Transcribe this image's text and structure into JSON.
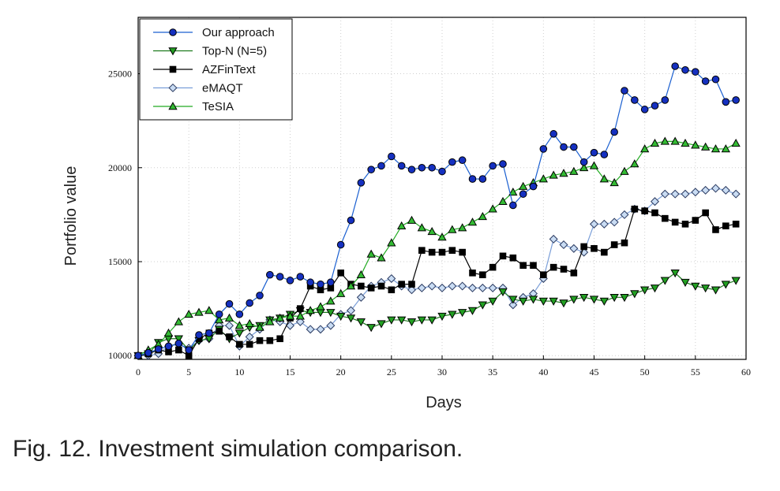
{
  "caption": "Fig. 12. Investment simulation comparison.",
  "chart_data": {
    "type": "line",
    "xlabel": "Days",
    "ylabel": "Portfolio value",
    "xlim": [
      0,
      60
    ],
    "ylim": [
      9800,
      28000
    ],
    "xticks": [
      0,
      5,
      10,
      15,
      20,
      25,
      30,
      35,
      40,
      45,
      50,
      55,
      60
    ],
    "yticks": [
      10000,
      15000,
      20000,
      25000
    ],
    "grid": true,
    "legend_position": "top-left",
    "x": [
      0,
      1,
      2,
      3,
      4,
      5,
      6,
      7,
      8,
      9,
      10,
      11,
      12,
      13,
      14,
      15,
      16,
      17,
      18,
      19,
      20,
      21,
      22,
      23,
      24,
      25,
      26,
      27,
      28,
      29,
      30,
      31,
      32,
      33,
      34,
      35,
      36,
      37,
      38,
      39,
      40,
      41,
      42,
      43,
      44,
      45,
      46,
      47,
      48,
      49,
      50,
      51,
      52,
      53,
      54,
      55,
      56,
      57,
      58,
      59
    ],
    "series": [
      {
        "name": "Our approach",
        "color": "#1a5fd0",
        "fill": "#1530c0",
        "marker": "circle",
        "values": [
          10000,
          10150,
          10350,
          10500,
          10650,
          10300,
          11100,
          11200,
          12200,
          12750,
          12200,
          12800,
          13200,
          14300,
          14200,
          14000,
          14200,
          13900,
          13800,
          13900,
          15900,
          17200,
          19200,
          19900,
          20100,
          20600,
          20100,
          19900,
          20000,
          20000,
          19800,
          20300,
          20400,
          19400,
          19400,
          20100,
          20200,
          18000,
          18600,
          19000,
          21000,
          21800,
          21100,
          21100,
          20300,
          20800,
          20700,
          21900,
          24100,
          23600,
          23100,
          23300,
          23600,
          25400,
          25200,
          25100,
          24600,
          24700,
          23500,
          23600
        ]
      },
      {
        "name": "Top-N (N=5)",
        "color": "#1e7a1e",
        "fill": "#22a022",
        "marker": "triangle-down",
        "values": [
          10000,
          10100,
          10700,
          10900,
          10900,
          10300,
          10800,
          10900,
          11400,
          10900,
          11200,
          11500,
          11600,
          11900,
          12000,
          12200,
          12400,
          12300,
          12300,
          12300,
          12100,
          12000,
          11800,
          11500,
          11700,
          11900,
          11900,
          11800,
          11900,
          11900,
          12100,
          12200,
          12300,
          12400,
          12700,
          12900,
          13400,
          13000,
          12900,
          13000,
          12900,
          12900,
          12800,
          13000,
          13100,
          13000,
          12900,
          13100,
          13100,
          13300,
          13500,
          13600,
          14000,
          14400,
          13900,
          13700,
          13600,
          13500,
          13800,
          14000
        ]
      },
      {
        "name": "AZFinText",
        "color": "#000000",
        "fill": "#000000",
        "marker": "square",
        "values": [
          10000,
          10100,
          10300,
          10200,
          10300,
          10000,
          10900,
          11200,
          11300,
          11000,
          10600,
          10600,
          10800,
          10800,
          10900,
          12000,
          12500,
          13700,
          13500,
          13600,
          14400,
          13800,
          13700,
          13600,
          13700,
          13500,
          13800,
          13800,
          15600,
          15500,
          15500,
          15600,
          15500,
          14400,
          14300,
          14700,
          15300,
          15200,
          14800,
          14800,
          14300,
          14700,
          14600,
          14400,
          15800,
          15700,
          15500,
          15900,
          16000,
          17800,
          17700,
          17600,
          17300,
          17100,
          17000,
          17200,
          17600,
          16700,
          16900,
          17000
        ]
      },
      {
        "name": "eMAQT",
        "color": "#7a9ed8",
        "fill": "#c9dcf3",
        "marker": "diamond",
        "values": [
          10000,
          10000,
          10100,
          10500,
          10600,
          10400,
          10800,
          10900,
          11600,
          11600,
          10500,
          11000,
          11400,
          11900,
          11800,
          11600,
          11800,
          11400,
          11400,
          11600,
          12200,
          12400,
          13100,
          13700,
          13900,
          14100,
          13700,
          13500,
          13600,
          13700,
          13600,
          13700,
          13700,
          13600,
          13600,
          13600,
          13600,
          12700,
          13100,
          13300,
          14100,
          16200,
          15900,
          15700,
          15500,
          17000,
          17000,
          17100,
          17500,
          17800,
          17700,
          18200,
          18600,
          18600,
          18600,
          18700,
          18800,
          18900,
          18800,
          18600
        ]
      },
      {
        "name": "TeSIA",
        "color": "#22aa22",
        "fill": "#33bb33",
        "marker": "triangle-up",
        "values": [
          10000,
          10300,
          10600,
          11200,
          11800,
          12200,
          12300,
          12400,
          11900,
          12000,
          11600,
          11700,
          11500,
          11800,
          12000,
          12100,
          12100,
          12400,
          12600,
          12900,
          13300,
          13700,
          14300,
          15400,
          15200,
          16000,
          16900,
          17200,
          16800,
          16600,
          16300,
          16700,
          16800,
          17100,
          17400,
          17800,
          18200,
          18700,
          19000,
          19200,
          19400,
          19600,
          19700,
          19800,
          20000,
          20100,
          19400,
          19200,
          19800,
          20200,
          21000,
          21300,
          21400,
          21400,
          21300,
          21200,
          21100,
          21000,
          21000,
          21300
        ]
      }
    ]
  }
}
